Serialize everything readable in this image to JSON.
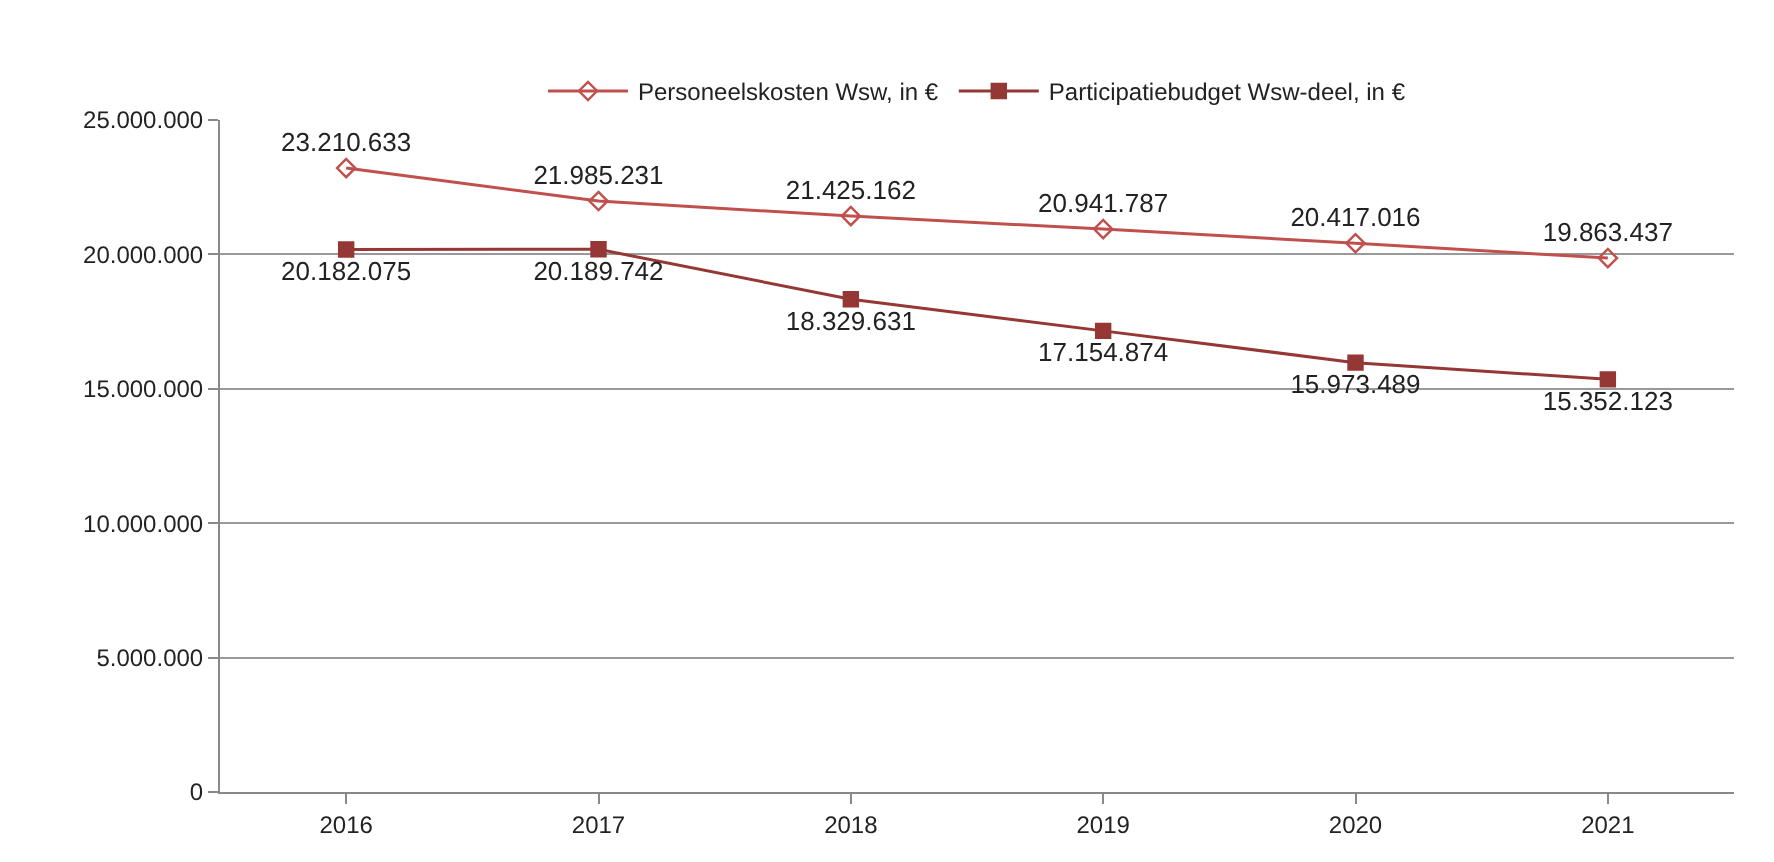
{
  "chart_data": {
    "type": "line",
    "categories": [
      "2016",
      "2017",
      "2018",
      "2019",
      "2020",
      "2021"
    ],
    "series": [
      {
        "name": "Personeelskosten Wsw, in €",
        "color": "#c0504d",
        "marker": "diamond",
        "values": [
          23210633,
          21985231,
          21425162,
          20941787,
          20417016,
          19863437
        ],
        "value_labels": [
          "23.210.633",
          "21.985.231",
          "21.425.162",
          "20.941.787",
          "20.417.016",
          "19.863.437"
        ]
      },
      {
        "name": "Participatiebudget Wsw-deel, in €",
        "color": "#953735",
        "marker": "square",
        "values": [
          20182075,
          20189742,
          18329631,
          17154874,
          15973489,
          15352123
        ],
        "value_labels": [
          "20.182.075",
          "20.189.742",
          "18.329.631",
          "17.154.874",
          "15.973.489",
          "15.352.123"
        ]
      }
    ],
    "ylim": [
      0,
      25000000
    ],
    "yticks": [
      {
        "value": 0,
        "label": "0"
      },
      {
        "value": 5000000,
        "label": "5.000.000"
      },
      {
        "value": 10000000,
        "label": "10.000.000"
      },
      {
        "value": 15000000,
        "label": "15.000.000"
      },
      {
        "value": 20000000,
        "label": "20.000.000"
      },
      {
        "value": 25000000,
        "label": "25.000.000"
      }
    ],
    "grid": "y",
    "legend": "top"
  }
}
